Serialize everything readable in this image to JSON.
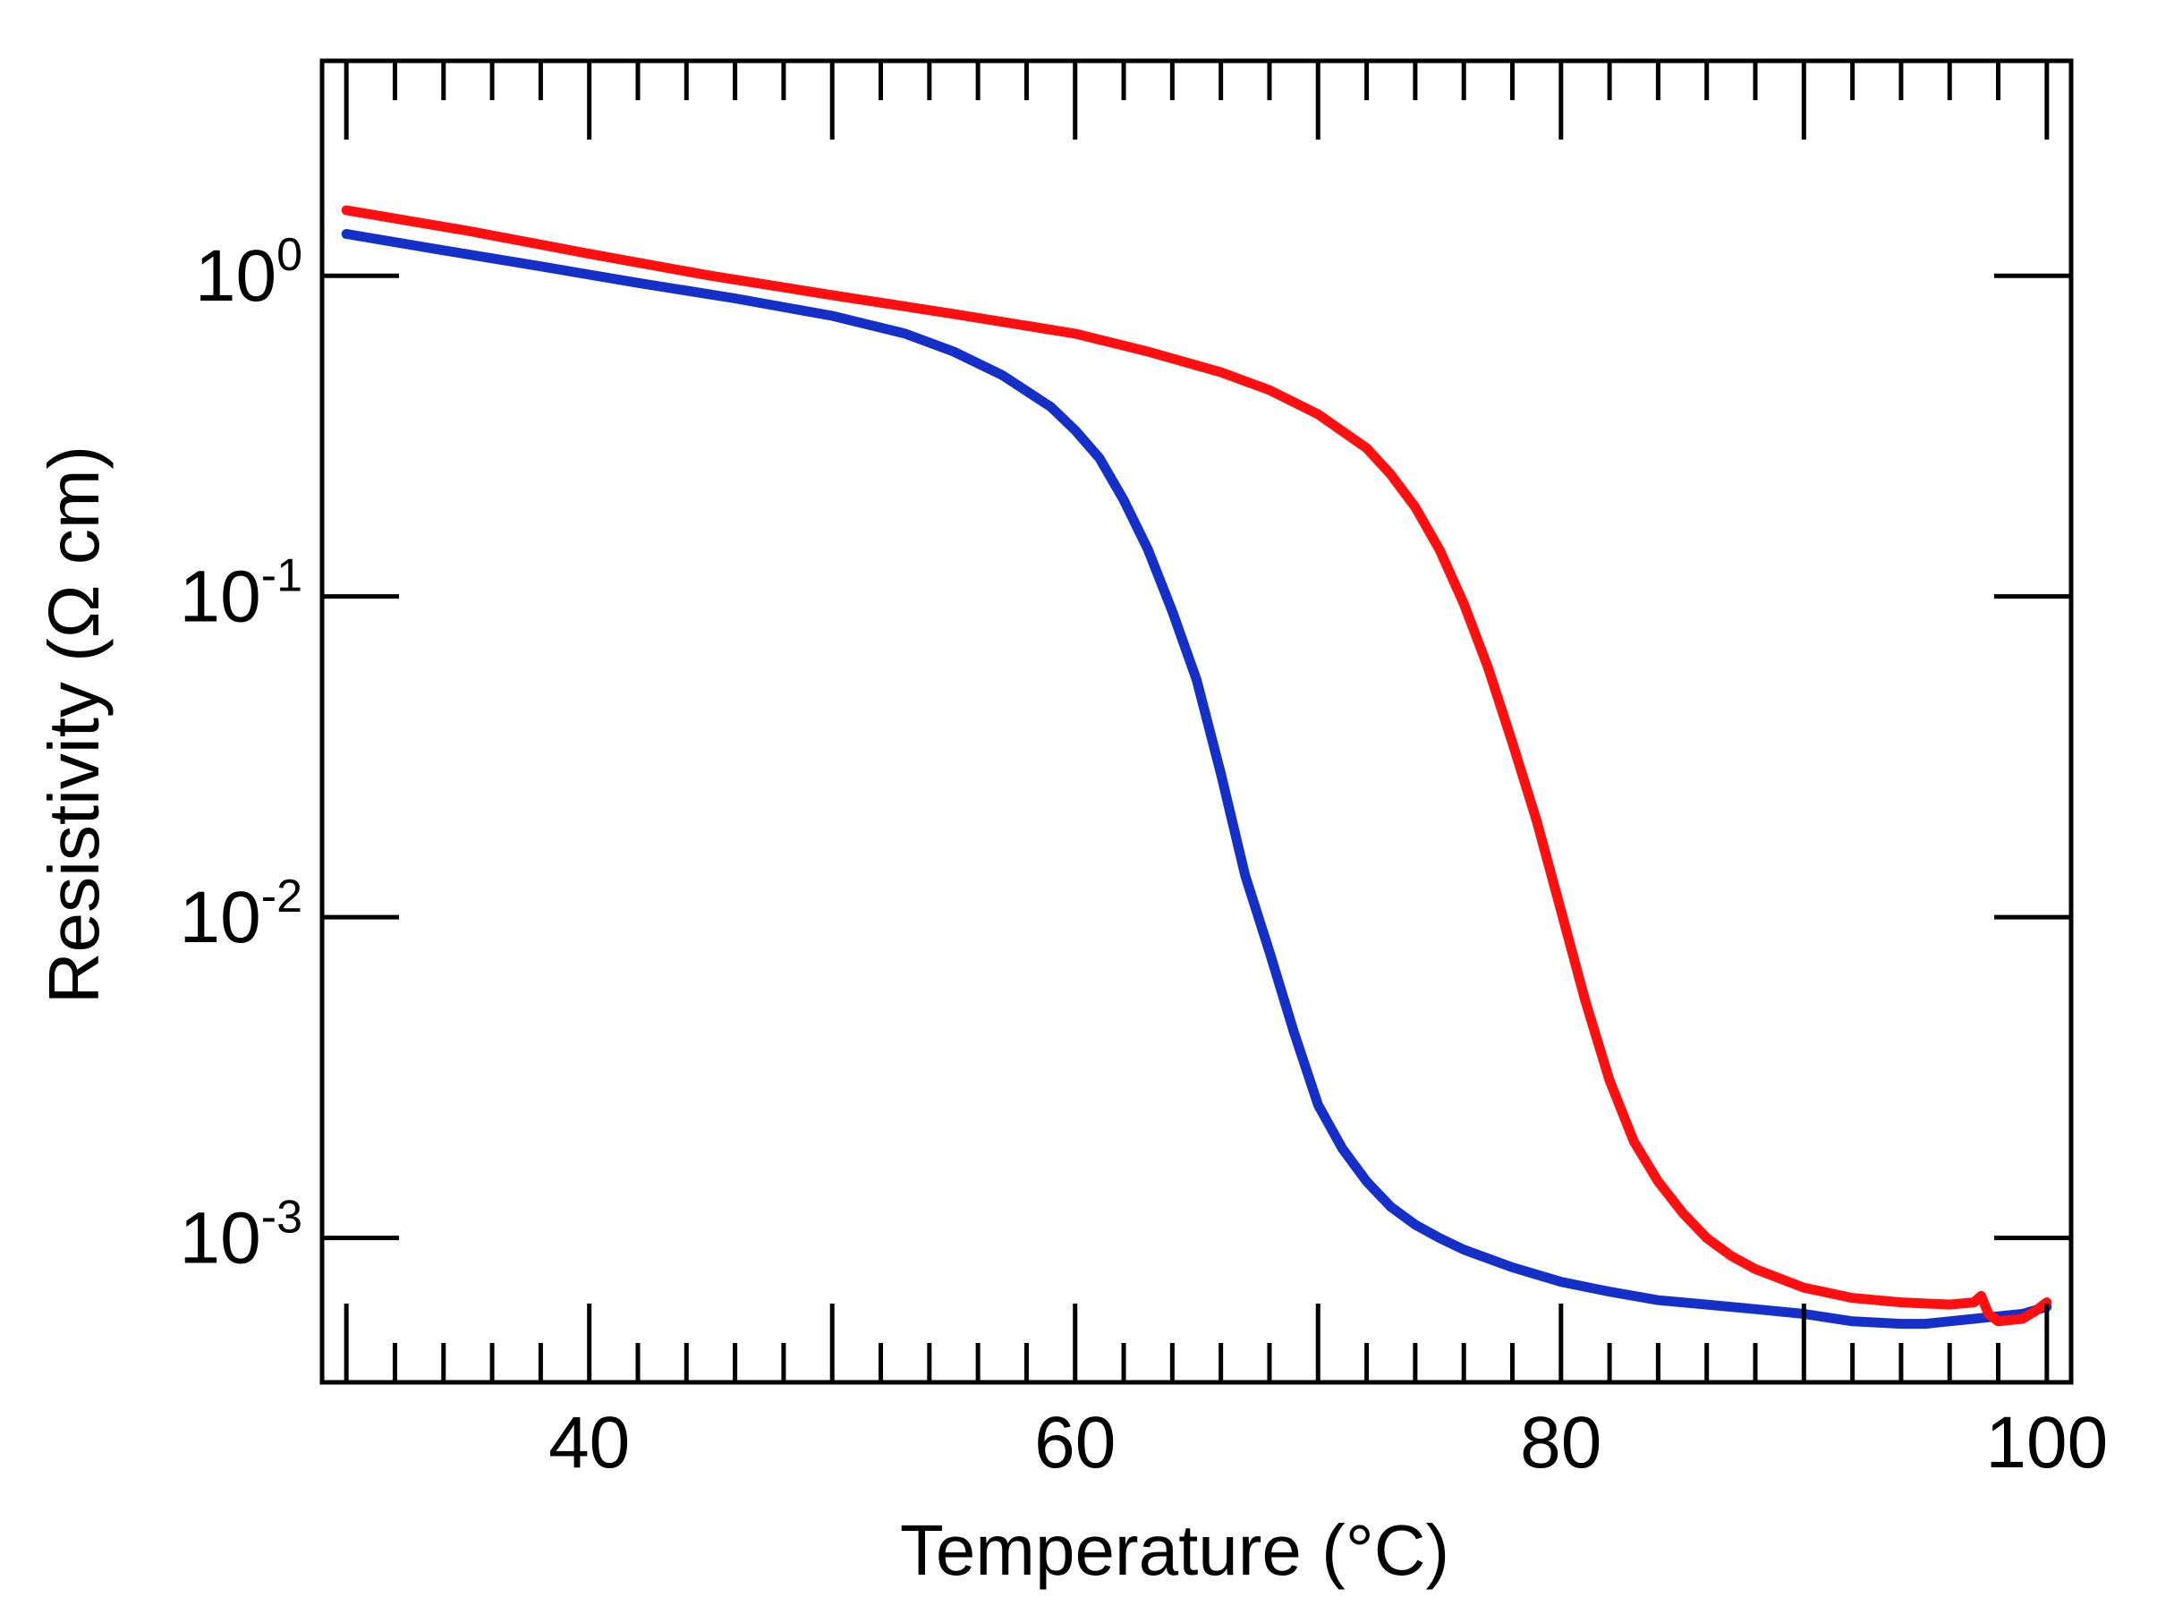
{
  "chart_data": {
    "type": "line",
    "title": "",
    "xlabel": "Temperature (°C)",
    "ylabel": "Resistivity (Ω cm)",
    "xlim": [
      29,
      101
    ],
    "ylim_log10": [
      -3.45,
      0.67
    ],
    "y_scale": "log",
    "x_major_ticks": [
      40,
      60,
      80,
      100
    ],
    "x_tick_labels": [
      "40",
      "60",
      "80",
      "100"
    ],
    "y_major_ticks": [
      {
        "base": "10",
        "exponent": "0",
        "log10": 0
      },
      {
        "base": "10",
        "exponent": "-1",
        "log10": -1
      },
      {
        "base": "10",
        "exponent": "-2",
        "log10": -2
      },
      {
        "base": "10",
        "exponent": "-3",
        "log10": -3
      }
    ],
    "grid": false,
    "legend": "none",
    "series": [
      {
        "name": "blue curve",
        "color": "#1530c8",
        "x": [
          30,
          34,
          38,
          42,
          46,
          50,
          53,
          55,
          57,
          59,
          60,
          61,
          62,
          63,
          64,
          65,
          66,
          67,
          68,
          69,
          70,
          71,
          72,
          73,
          74,
          75,
          76,
          78,
          80,
          82,
          84,
          86,
          88,
          90,
          92,
          94,
          95,
          96,
          97,
          98,
          99,
          100
        ],
        "y": [
          1.35,
          1.2,
          1.07,
          0.95,
          0.85,
          0.75,
          0.66,
          0.58,
          0.49,
          0.39,
          0.33,
          0.27,
          0.2,
          0.14,
          0.09,
          0.055,
          0.028,
          0.0135,
          0.0078,
          0.0044,
          0.0026,
          0.0019,
          0.0015,
          0.00125,
          0.0011,
          0.001,
          0.00092,
          0.00081,
          0.00073,
          0.00068,
          0.00064,
          0.00062,
          0.0006,
          0.00058,
          0.00055,
          0.00054,
          0.00054,
          0.00055,
          0.00056,
          0.00057,
          0.00058,
          0.00061
        ]
      },
      {
        "name": "red curve",
        "color": "#ff0f0f",
        "x": [
          30,
          35,
          40,
          45,
          50,
          55,
          60,
          63,
          66,
          68,
          70,
          72,
          73,
          74,
          75,
          76,
          77,
          78,
          79,
          80,
          81,
          82,
          83,
          84,
          85,
          86,
          87,
          88,
          90,
          92,
          94,
          96,
          97,
          97.3,
          97.6,
          98,
          99,
          99.5,
          100
        ],
        "y": [
          1.6,
          1.38,
          1.17,
          1.0,
          0.87,
          0.76,
          0.66,
          0.58,
          0.5,
          0.44,
          0.37,
          0.29,
          0.24,
          0.19,
          0.14,
          0.095,
          0.06,
          0.035,
          0.02,
          0.0105,
          0.0055,
          0.0031,
          0.002,
          0.0015,
          0.0012,
          0.001,
          0.00088,
          0.0008,
          0.0007,
          0.00065,
          0.00063,
          0.00062,
          0.00063,
          0.00066,
          0.00058,
          0.00055,
          0.00056,
          0.00059,
          0.00063
        ]
      }
    ]
  }
}
